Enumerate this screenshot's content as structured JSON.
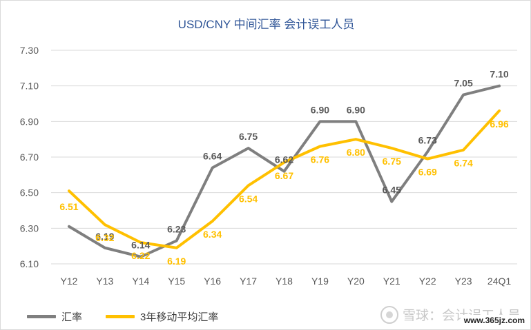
{
  "chart_data": {
    "type": "line",
    "title": "USD/CNY 中间汇率 会计误工人员",
    "categories": [
      "Y12",
      "Y13",
      "Y14",
      "Y15",
      "Y16",
      "Y17",
      "Y18",
      "Y19",
      "Y20",
      "Y21",
      "Y22",
      "Y23",
      "24Q1"
    ],
    "ylim": [
      6.1,
      7.3
    ],
    "yticks": [
      "6.10",
      "6.30",
      "6.50",
      "6.70",
      "6.90",
      "7.10",
      "7.30"
    ],
    "grid": true,
    "legend_position": "bottom-left",
    "series": [
      {
        "name": "汇率",
        "color": "#7f7f7f",
        "values": [
          6.31,
          6.19,
          6.14,
          6.23,
          6.64,
          6.75,
          6.62,
          6.9,
          6.9,
          6.45,
          6.73,
          7.05,
          7.1
        ],
        "labels": [
          "",
          "6.19",
          "6.14",
          "6.23",
          "6.64",
          "6.75",
          "6.62",
          "6.90",
          "6.90",
          "6.45",
          "6.73",
          "7.05",
          "7.10"
        ]
      },
      {
        "name": "3年移动平均汇率",
        "color": "#ffc000",
        "values": [
          6.51,
          6.32,
          6.22,
          6.19,
          6.34,
          6.54,
          6.67,
          6.76,
          6.8,
          6.75,
          6.69,
          6.74,
          6.96
        ],
        "labels": [
          "6.51",
          "6.32",
          "6.22",
          "6.19",
          "6.34",
          "6.54",
          "6.67",
          "6.76",
          "6.80",
          "6.75",
          "6.69",
          "6.74",
          "6.96"
        ]
      }
    ]
  },
  "watermark": {
    "text": "雪球：会计误工人员",
    "url": "www.365jz.com"
  }
}
